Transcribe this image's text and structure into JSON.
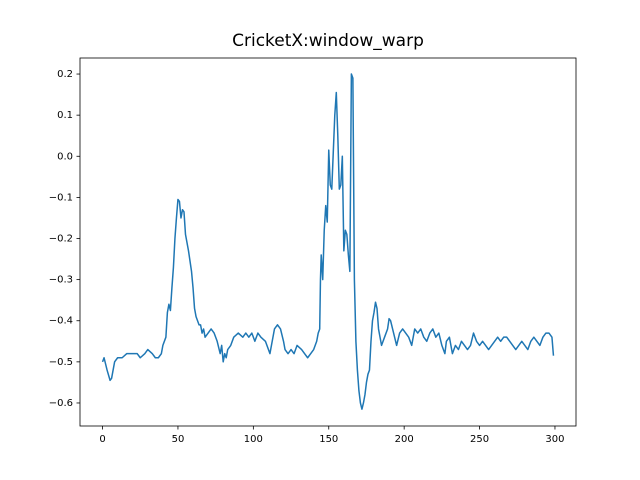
{
  "chart_data": {
    "type": "line",
    "title": "CricketX:window_warp",
    "x": [
      0,
      1,
      3,
      5,
      6,
      8,
      10,
      13,
      16,
      20,
      23,
      25,
      28,
      30,
      33,
      35,
      37,
      39,
      40,
      42,
      43,
      44,
      45,
      46,
      47,
      48,
      49,
      50,
      51,
      52,
      53,
      54,
      55,
      57,
      59,
      60,
      61,
      62,
      63,
      64,
      65,
      66,
      67,
      68,
      70,
      72,
      74,
      76,
      78,
      79,
      80,
      81,
      82,
      83,
      85,
      87,
      90,
      93,
      95,
      97,
      99,
      101,
      103,
      105,
      108,
      110,
      111,
      112,
      114,
      116,
      118,
      120,
      121,
      123,
      125,
      127,
      129,
      132,
      134,
      136,
      138,
      140,
      142,
      143,
      144,
      144.5,
      145,
      146,
      147,
      148,
      149,
      150,
      151,
      152,
      153,
      154,
      155,
      156,
      157,
      158,
      159,
      160,
      161,
      162,
      163,
      164,
      165,
      166,
      167,
      168,
      169,
      170,
      171,
      172,
      173,
      174,
      175,
      176,
      177,
      178,
      179,
      180,
      181,
      182,
      183,
      185,
      187,
      189,
      190,
      191,
      193,
      195,
      197,
      199,
      201,
      203,
      205,
      207,
      209,
      211,
      213,
      215,
      217,
      219,
      221,
      223,
      225,
      227,
      228,
      230,
      232,
      234,
      236,
      238,
      240,
      242,
      244,
      246,
      248,
      250,
      252,
      254,
      256,
      258,
      260,
      262,
      264,
      266,
      268,
      270,
      272,
      274,
      276,
      278,
      280,
      282,
      284,
      286,
      288,
      290,
      292,
      294,
      296,
      298,
      299
    ],
    "series": [
      {
        "color": "#1f77b4",
        "values": [
          -0.5,
          -0.49,
          -0.52,
          -0.545,
          -0.54,
          -0.5,
          -0.49,
          -0.49,
          -0.48,
          -0.48,
          -0.48,
          -0.49,
          -0.48,
          -0.47,
          -0.48,
          -0.49,
          -0.49,
          -0.48,
          -0.46,
          -0.44,
          -0.38,
          -0.36,
          -0.375,
          -0.32,
          -0.27,
          -0.2,
          -0.15,
          -0.105,
          -0.11,
          -0.15,
          -0.13,
          -0.135,
          -0.19,
          -0.23,
          -0.28,
          -0.32,
          -0.37,
          -0.39,
          -0.4,
          -0.41,
          -0.41,
          -0.43,
          -0.42,
          -0.44,
          -0.43,
          -0.42,
          -0.43,
          -0.45,
          -0.48,
          -0.46,
          -0.5,
          -0.48,
          -0.49,
          -0.47,
          -0.46,
          -0.44,
          -0.43,
          -0.44,
          -0.43,
          -0.44,
          -0.43,
          -0.45,
          -0.43,
          -0.44,
          -0.45,
          -0.47,
          -0.48,
          -0.46,
          -0.42,
          -0.41,
          -0.42,
          -0.45,
          -0.47,
          -0.48,
          -0.47,
          -0.48,
          -0.46,
          -0.47,
          -0.48,
          -0.49,
          -0.48,
          -0.47,
          -0.45,
          -0.43,
          -0.42,
          -0.3,
          -0.24,
          -0.3,
          -0.18,
          -0.12,
          -0.16,
          0.015,
          -0.07,
          -0.08,
          0.01,
          0.1,
          0.155,
          0.05,
          -0.08,
          -0.07,
          0,
          -0.23,
          -0.18,
          -0.19,
          -0.24,
          -0.28,
          0.2,
          0.19,
          -0.3,
          -0.45,
          -0.52,
          -0.57,
          -0.6,
          -0.615,
          -0.6,
          -0.58,
          -0.55,
          -0.53,
          -0.52,
          -0.45,
          -0.4,
          -0.38,
          -0.355,
          -0.37,
          -0.42,
          -0.46,
          -0.44,
          -0.42,
          -0.395,
          -0.4,
          -0.43,
          -0.46,
          -0.43,
          -0.42,
          -0.43,
          -0.44,
          -0.46,
          -0.42,
          -0.43,
          -0.42,
          -0.44,
          -0.45,
          -0.43,
          -0.42,
          -0.44,
          -0.43,
          -0.46,
          -0.48,
          -0.45,
          -0.44,
          -0.48,
          -0.46,
          -0.47,
          -0.45,
          -0.46,
          -0.47,
          -0.46,
          -0.43,
          -0.45,
          -0.46,
          -0.45,
          -0.46,
          -0.47,
          -0.46,
          -0.45,
          -0.44,
          -0.45,
          -0.44,
          -0.44,
          -0.45,
          -0.46,
          -0.47,
          -0.46,
          -0.45,
          -0.46,
          -0.47,
          -0.45,
          -0.44,
          -0.45,
          -0.46,
          -0.44,
          -0.43,
          -0.43,
          -0.44,
          -0.485
        ]
      }
    ],
    "xlim": [
      -14.95,
      313.95
    ],
    "xticks": [
      0,
      50,
      100,
      150,
      200,
      250,
      300
    ],
    "ylim": [
      -0.656,
      0.239
    ],
    "yticks": [
      {
        "value": -0.6,
        "label": "−0.6"
      },
      {
        "value": -0.5,
        "label": "−0.5"
      },
      {
        "value": -0.4,
        "label": "−0.4"
      },
      {
        "value": -0.3,
        "label": "−0.3"
      },
      {
        "value": -0.2,
        "label": "−0.2"
      },
      {
        "value": -0.1,
        "label": "−0.1"
      },
      {
        "value": 0,
        "label": "0.0"
      },
      0.1,
      0.2
    ],
    "grid": false
  }
}
